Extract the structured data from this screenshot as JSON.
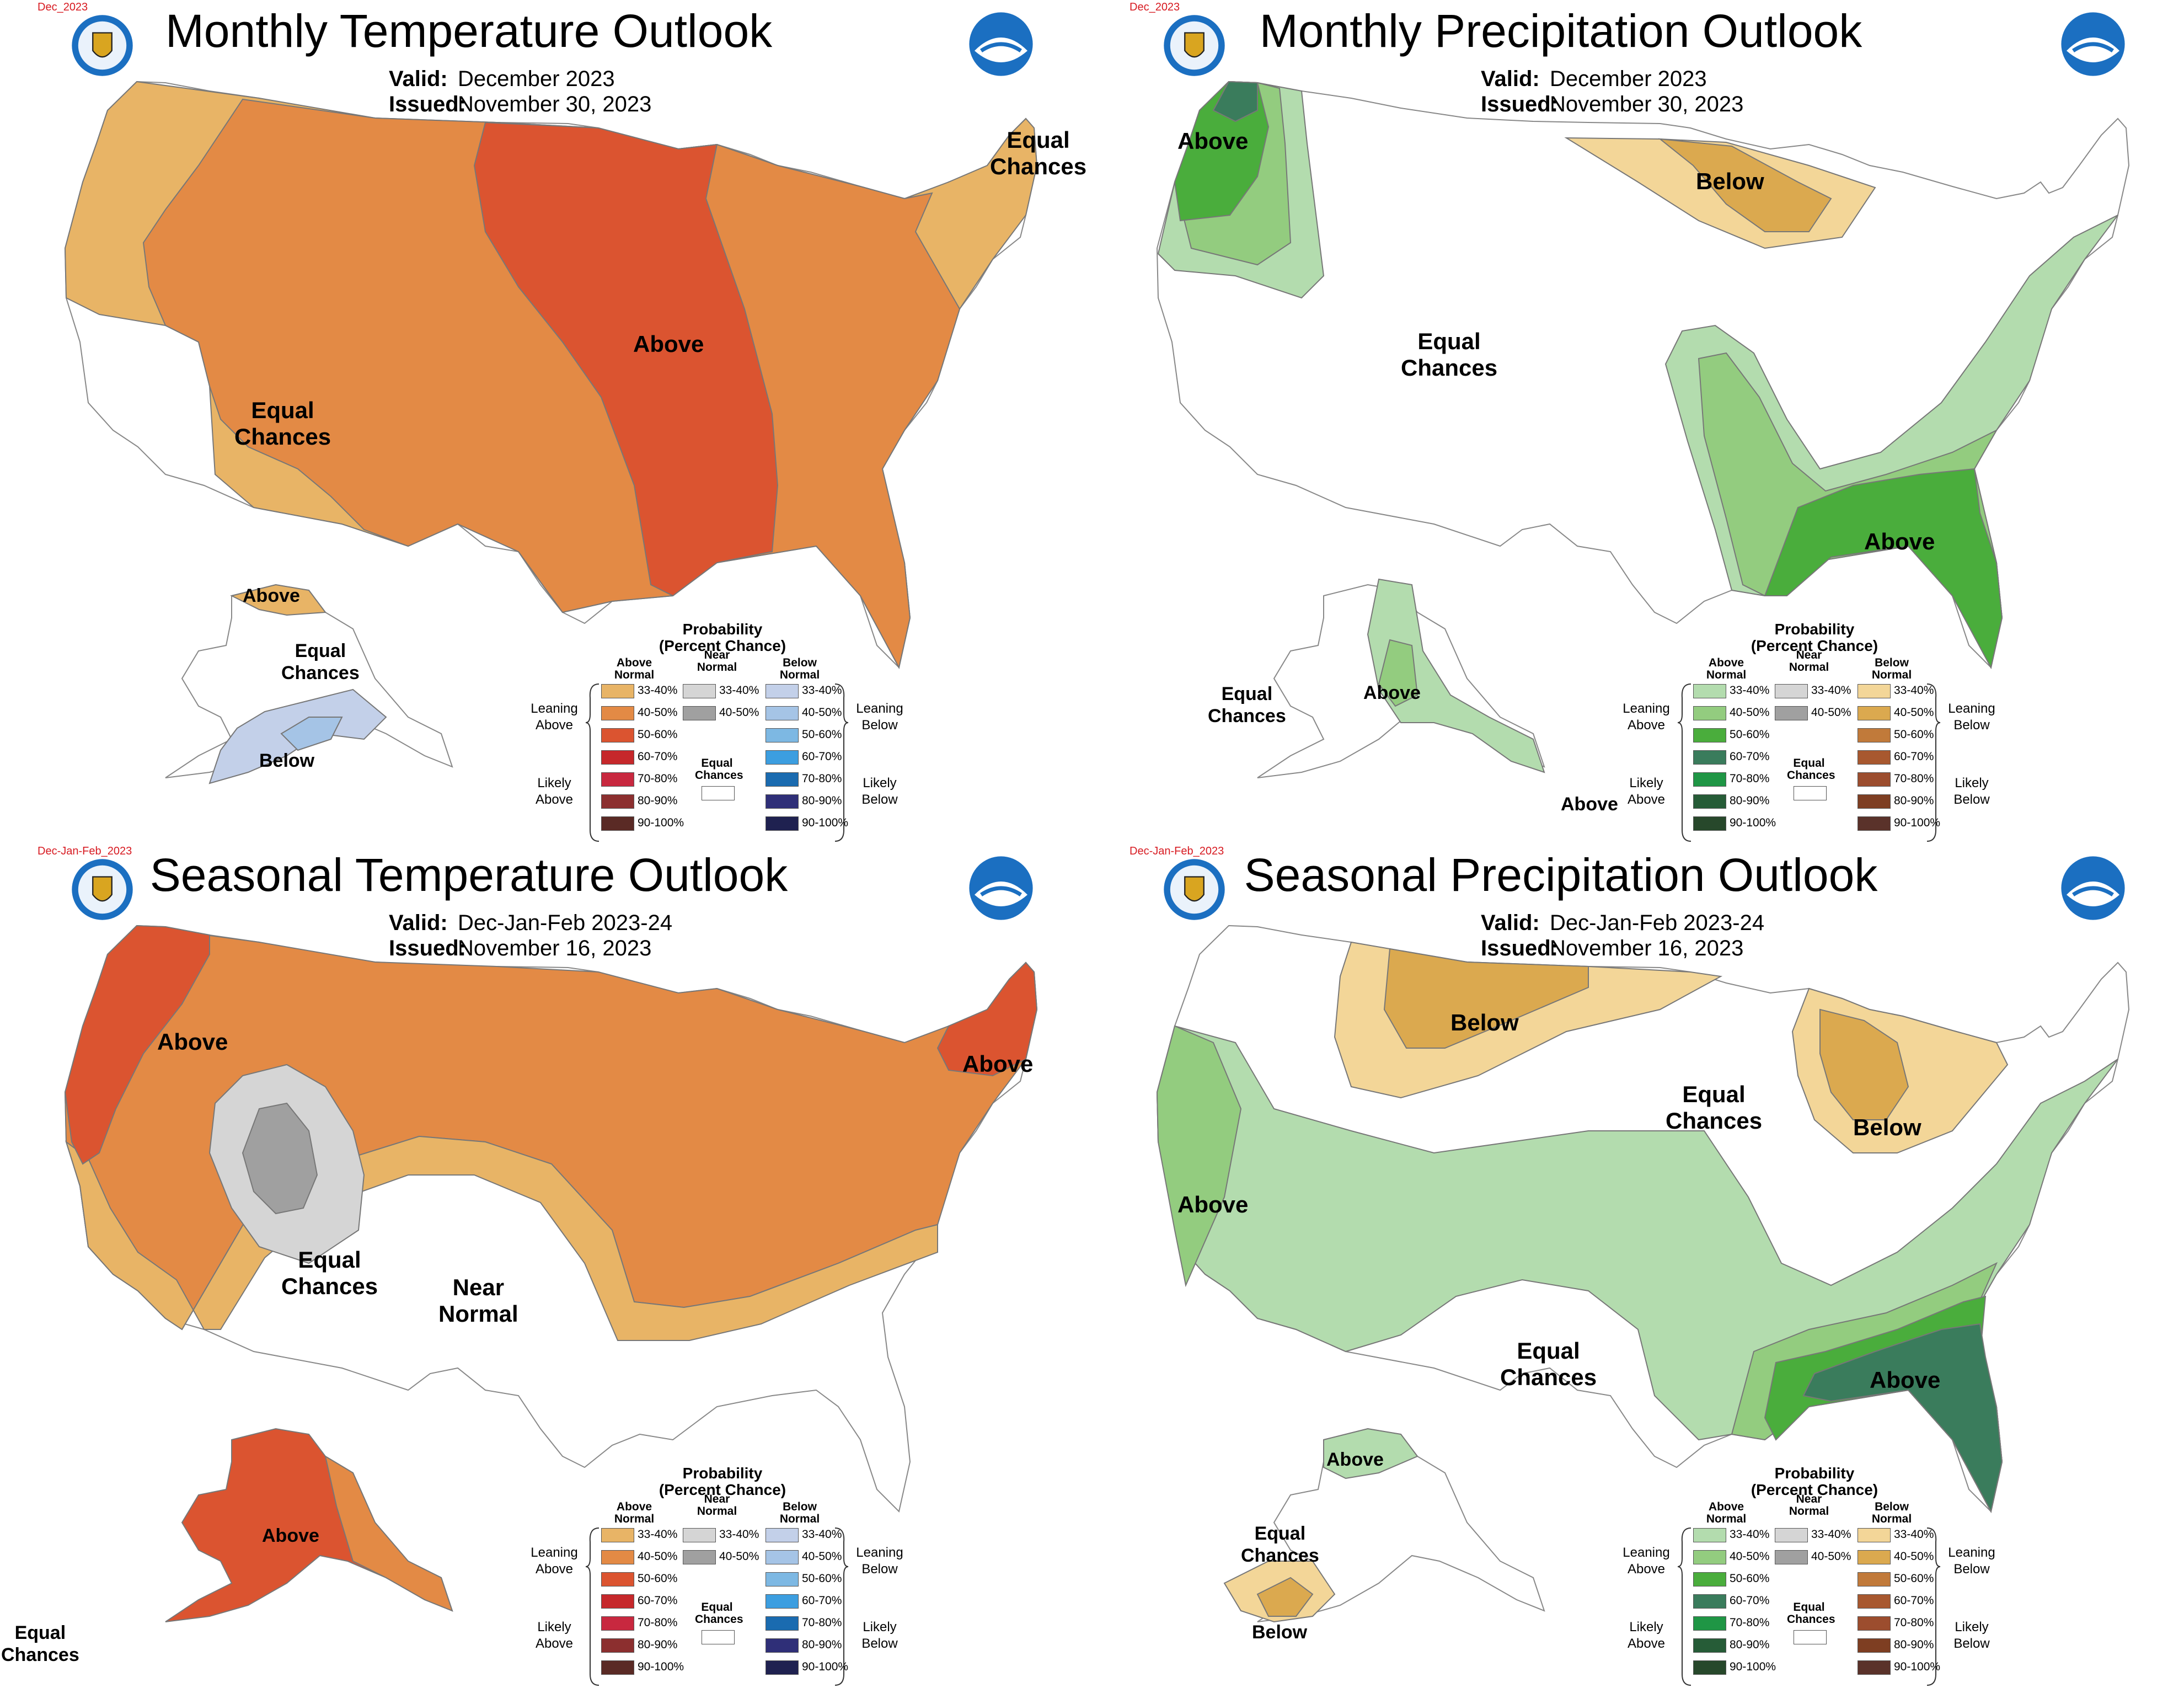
{
  "panels": [
    {
      "title": "Monthly Temperature Outlook",
      "corner_tag": "Dec_2023",
      "valid_label": "Valid:",
      "valid": "December 2023",
      "issued_label": "Issued:",
      "issued": "November 30, 2023",
      "labels": [
        "Above",
        "Equal\nChances",
        "Equal\nChances",
        "Above",
        "Equal\nChances",
        "Below"
      ]
    },
    {
      "title": "Monthly Precipitation Outlook",
      "corner_tag": "Dec_2023",
      "valid_label": "Valid:",
      "valid": "December 2023",
      "issued_label": "Issued:",
      "issued": "November 30, 2023",
      "labels": [
        "Above",
        "Below",
        "Equal\nChances",
        "Above",
        "Equal\nChances",
        "Above",
        "Above"
      ]
    },
    {
      "title": "Seasonal Temperature Outlook",
      "corner_tag": "Dec-Jan-Feb_2023",
      "valid_label": "Valid:",
      "valid": "Dec-Jan-Feb 2023-24",
      "issued_label": "Issued:",
      "issued": "November 16, 2023",
      "labels": [
        "Above",
        "Above",
        "Equal\nChances",
        "Near\nNormal",
        "Above",
        "Equal\nChances"
      ]
    },
    {
      "title": "Seasonal Precipitation Outlook",
      "corner_tag": "Dec-Jan-Feb_2023",
      "valid_label": "Valid:",
      "valid": "Dec-Jan-Feb 2023-24",
      "issued_label": "Issued:",
      "issued": "November 16, 2023",
      "labels": [
        "Below",
        "Equal\nChances",
        "Below",
        "Above",
        "Equal\nChances",
        "Above",
        "Above",
        "Equal\nChances",
        "Below"
      ]
    }
  ],
  "legend": {
    "title1": "Probability",
    "title2": "(Percent Chance)",
    "above_header": "Above\nNormal",
    "near_header": "Near\nNormal",
    "below_header": "Below\nNormal",
    "equal_chances": "Equal\nChances",
    "leaning_above": "Leaning\nAbove",
    "likely_above": "Likely\nAbove",
    "leaning_below": "Leaning\nBelow",
    "likely_below": "Likely\nBelow",
    "ranges": [
      "33-40%",
      "40-50%",
      "50-60%",
      "60-70%",
      "70-80%",
      "80-90%",
      "90-100%"
    ],
    "near_ranges": [
      "33-40%",
      "40-50%"
    ]
  },
  "colors": {
    "temp_above": [
      "#e8b466",
      "#e38a45",
      "#db5430",
      "#c6282b",
      "#c8283f",
      "#8c2f2f",
      "#5a2a25"
    ],
    "temp_below": [
      "#c3d0e9",
      "#a5c4e6",
      "#7db8e3",
      "#3c9ee0",
      "#1a6bb0",
      "#2f2f78",
      "#1f2150"
    ],
    "prcp_above": [
      "#b3dcae",
      "#93cc7f",
      "#4aad3c",
      "#3a7c5c",
      "#1f9645",
      "#265c37",
      "#27482b"
    ],
    "prcp_below": [
      "#f3d698",
      "#dba94f",
      "#c17a3a",
      "#a8582f",
      "#9c4d2e",
      "#7e3e22",
      "#5a322a"
    ],
    "near": [
      "#d5d5d5",
      "#a0a0a0"
    ],
    "noaa_blue": "#1b6fc1",
    "corner_red": "#d71920"
  }
}
